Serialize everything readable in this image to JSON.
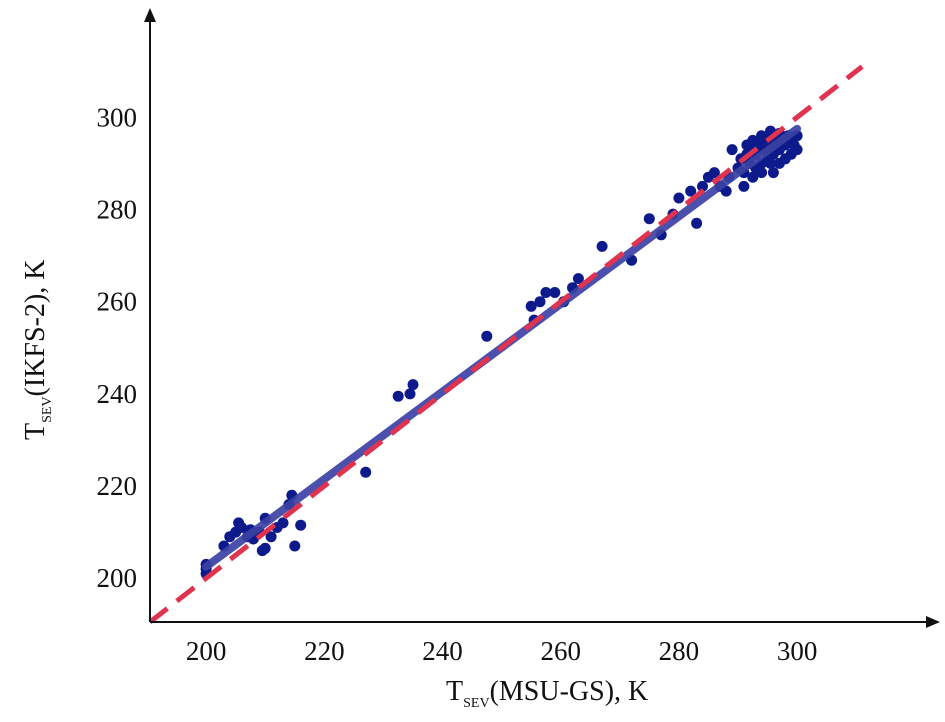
{
  "chart_data": {
    "type": "scatter",
    "xlabel": {
      "main": "T",
      "sub": "SEV",
      "rest": "(MSU-GS), K"
    },
    "ylabel": {
      "main": "T",
      "sub": "SEV",
      "rest": "(IKFS-2), K"
    },
    "xlim": [
      190.5,
      312
    ],
    "ylim": [
      190.5,
      312
    ],
    "xticks": [
      "200",
      "220",
      "240",
      "260",
      "280",
      "300"
    ],
    "yticks": [
      "200",
      "220",
      "240",
      "260",
      "280",
      "300"
    ],
    "grid": false,
    "points": [
      [
        200,
        201
      ],
      [
        200,
        202
      ],
      [
        200,
        203
      ],
      [
        203,
        207
      ],
      [
        204,
        209
      ],
      [
        205,
        210
      ],
      [
        205.5,
        212
      ],
      [
        206,
        211
      ],
      [
        207,
        209
      ],
      [
        207.5,
        210.5
      ],
      [
        208,
        208.5
      ],
      [
        209,
        210
      ],
      [
        209.5,
        206
      ],
      [
        210,
        206.5
      ],
      [
        210,
        213
      ],
      [
        211,
        209
      ],
      [
        212,
        211
      ],
      [
        213,
        212
      ],
      [
        214,
        216
      ],
      [
        214.5,
        218
      ],
      [
        215,
        207
      ],
      [
        216,
        211.5
      ],
      [
        227,
        223
      ],
      [
        232.5,
        239.5
      ],
      [
        234.5,
        240
      ],
      [
        235,
        242
      ],
      [
        247.5,
        252.5
      ],
      [
        255,
        259
      ],
      [
        255.5,
        256
      ],
      [
        256.5,
        260
      ],
      [
        257.5,
        262
      ],
      [
        259,
        262
      ],
      [
        260.5,
        260
      ],
      [
        262,
        263
      ],
      [
        263,
        265
      ],
      [
        267,
        272
      ],
      [
        272,
        269
      ],
      [
        275,
        278
      ],
      [
        277,
        274.5
      ],
      [
        279,
        279
      ],
      [
        280,
        282.5
      ],
      [
        282,
        284
      ],
      [
        283,
        277
      ],
      [
        284,
        285
      ],
      [
        285,
        287
      ],
      [
        286,
        288
      ],
      [
        287,
        285
      ],
      [
        288,
        284
      ],
      [
        288.5,
        287
      ],
      [
        289,
        293
      ],
      [
        290,
        289
      ],
      [
        290.5,
        291
      ],
      [
        291,
        285
      ],
      [
        291,
        288
      ],
      [
        291.5,
        292
      ],
      [
        291.5,
        294
      ],
      [
        292,
        290
      ],
      [
        292,
        293.5
      ],
      [
        292.5,
        295
      ],
      [
        293,
        289
      ],
      [
        293,
        292
      ],
      [
        293.5,
        294
      ],
      [
        294,
        290
      ],
      [
        294,
        296
      ],
      [
        294.5,
        293
      ],
      [
        295,
        291
      ],
      [
        295,
        295
      ],
      [
        295.5,
        297
      ],
      [
        296,
        288
      ],
      [
        296,
        292
      ],
      [
        296,
        294
      ],
      [
        296.5,
        296
      ],
      [
        297,
        290
      ],
      [
        297,
        293
      ],
      [
        297.5,
        295
      ],
      [
        298,
        291
      ],
      [
        298,
        294
      ],
      [
        298.5,
        296
      ],
      [
        299,
        292
      ],
      [
        299,
        295
      ],
      [
        299.5,
        294
      ],
      [
        300,
        296
      ],
      [
        300,
        293
      ],
      [
        292.5,
        287
      ],
      [
        294,
        288
      ],
      [
        295.5,
        290
      ],
      [
        297,
        296.5
      ]
    ],
    "regression_line": {
      "x": [
        200,
        300
      ],
      "y": [
        202.5,
        297.5
      ]
    },
    "identity_line": {
      "x": [
        190.5,
        311
      ],
      "y": [
        190.5,
        311
      ]
    },
    "colors": {
      "points": "#0d1a8c",
      "regression_line": "#3b42a4",
      "identity_line": "#e0334f",
      "axes": "#111111"
    }
  }
}
